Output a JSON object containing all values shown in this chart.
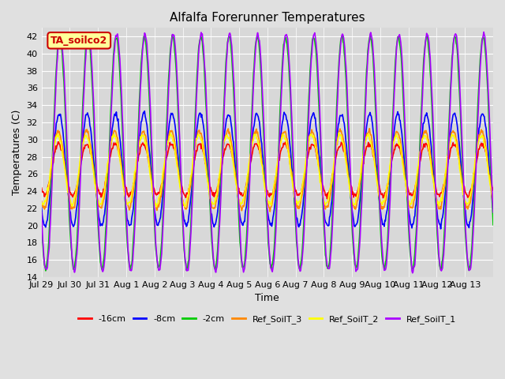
{
  "title": "Alfalfa Forerunner Temperatures",
  "ylabel": "Temperatures (C)",
  "xlabel": "Time",
  "ylim": [
    14,
    43
  ],
  "yticks": [
    14,
    16,
    18,
    20,
    22,
    24,
    26,
    28,
    30,
    32,
    34,
    36,
    38,
    40,
    42
  ],
  "bg_color": "#d8d8d8",
  "legend_label": "TA_soilco2",
  "legend_label_color": "#cc0000",
  "legend_bg": "#ffff99",
  "legend_border": "#cc0000",
  "line_colors": {
    "-16cm": "#ff0000",
    "-8cm": "#0000ff",
    "-2cm": "#00cc00",
    "Ref_SoilT_3": "#ff8800",
    "Ref_SoilT_2": "#ffff00",
    "Ref_SoilT_1": "#aa00ff"
  },
  "xtick_labels": [
    "Jul 29",
    "Jul 30",
    "Jul 31",
    "Aug 1",
    "Aug 2",
    "Aug 3",
    "Aug 4",
    "Aug 5",
    "Aug 6",
    "Aug 7",
    "Aug 8",
    "Aug 9",
    "Aug 10",
    "Aug 11",
    "Aug 12",
    "Aug 13"
  ],
  "n_days": 16,
  "tick_fontsize": 8,
  "grid_color": "#ffffff",
  "lw": 1.2
}
